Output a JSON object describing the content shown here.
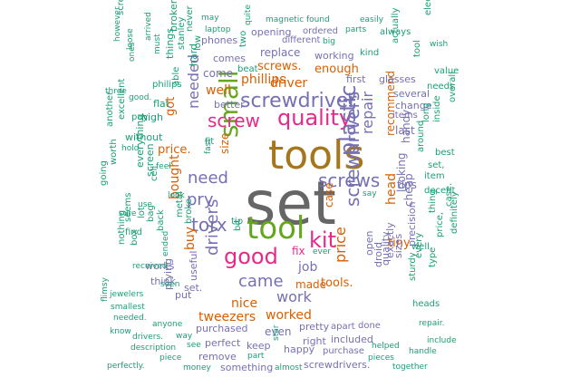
{
  "palette": {
    "teal": "#1b9e77",
    "orange": "#d95f02",
    "purple": "#7570b3",
    "magenta": "#e7298a",
    "green": "#66a61e",
    "olive": "#a6761d",
    "gray": "#666666",
    "gold": "#e6ab02"
  },
  "words": [
    {
      "text": "set",
      "color": "gray"
    },
    {
      "text": "tools",
      "color": "olive"
    },
    {
      "text": "tool",
      "color": "green"
    },
    {
      "text": "good",
      "color": "magenta"
    },
    {
      "text": "quality",
      "color": "magenta"
    },
    {
      "text": "screwdriver",
      "color": "purple"
    },
    {
      "text": "small",
      "color": "green"
    },
    {
      "text": "screw",
      "color": "magenta"
    },
    {
      "text": "kit",
      "color": "magenta"
    },
    {
      "text": "plastic",
      "color": "purple"
    },
    {
      "text": "screws",
      "color": "purple"
    },
    {
      "text": "screwdrivers",
      "color": "purple"
    },
    {
      "text": "need",
      "color": "purple"
    },
    {
      "text": "torx",
      "color": "purple"
    },
    {
      "text": "pry",
      "color": "purple"
    },
    {
      "text": "drivers",
      "color": "purple"
    },
    {
      "text": "came",
      "color": "purple"
    },
    {
      "text": "needed",
      "color": "purple"
    },
    {
      "text": "repair",
      "color": "purple"
    },
    {
      "text": "phillips",
      "color": "orange"
    },
    {
      "text": "driver",
      "color": "orange"
    },
    {
      "text": "buy",
      "color": "orange"
    },
    {
      "text": "job",
      "color": "purple"
    },
    {
      "text": "work",
      "color": "purple"
    },
    {
      "text": "price",
      "color": "orange"
    },
    {
      "text": "head",
      "color": "orange"
    },
    {
      "text": "bought",
      "color": "orange"
    },
    {
      "text": "well",
      "color": "orange"
    },
    {
      "text": "nice",
      "color": "orange"
    },
    {
      "text": "worked",
      "color": "orange"
    },
    {
      "text": "tweezers",
      "color": "orange"
    },
    {
      "text": "screws.",
      "color": "orange"
    },
    {
      "text": "enough",
      "color": "orange"
    },
    {
      "text": "price.",
      "color": "orange"
    },
    {
      "text": "tiny",
      "color": "orange"
    },
    {
      "text": "tools.",
      "color": "orange"
    },
    {
      "text": "made",
      "color": "orange"
    },
    {
      "text": "recommend",
      "color": "orange"
    },
    {
      "text": "case",
      "color": "orange"
    },
    {
      "text": "fix",
      "color": "magenta"
    },
    {
      "text": "got",
      "color": "orange"
    },
    {
      "text": "purchased",
      "color": "purple"
    },
    {
      "text": "replace",
      "color": "purple"
    },
    {
      "text": "last",
      "color": "purple"
    },
    {
      "text": "tips",
      "color": "purple"
    },
    {
      "text": "even",
      "color": "purple"
    },
    {
      "text": "looking",
      "color": "purple"
    },
    {
      "text": "cheap",
      "color": "purple"
    },
    {
      "text": "handy",
      "color": "purple"
    },
    {
      "text": "come",
      "color": "purple"
    },
    {
      "text": "better",
      "color": "purple"
    },
    {
      "text": "works",
      "color": "purple"
    },
    {
      "text": "think",
      "color": "purple"
    },
    {
      "text": "comes",
      "color": "purple"
    },
    {
      "text": "phones",
      "color": "purple"
    },
    {
      "text": "opening",
      "color": "purple"
    },
    {
      "text": "working",
      "color": "purple"
    },
    {
      "text": "different",
      "color": "purple"
    },
    {
      "text": "ordered",
      "color": "purple"
    },
    {
      "text": "first",
      "color": "purple"
    },
    {
      "text": "glasses",
      "color": "purple"
    },
    {
      "text": "several",
      "color": "purple"
    },
    {
      "text": "change",
      "color": "purple"
    },
    {
      "text": "items",
      "color": "purple"
    },
    {
      "text": "pretty",
      "color": "purple"
    },
    {
      "text": "right",
      "color": "purple"
    },
    {
      "text": "included",
      "color": "purple"
    },
    {
      "text": "happy",
      "color": "purple"
    },
    {
      "text": "perfect",
      "color": "purple"
    },
    {
      "text": "keep",
      "color": "purple"
    },
    {
      "text": "remove",
      "color": "purple"
    },
    {
      "text": "something",
      "color": "purple"
    },
    {
      "text": "screwdrivers.",
      "color": "purple"
    },
    {
      "text": "purchase",
      "color": "purple"
    },
    {
      "text": "apart",
      "color": "purple"
    },
    {
      "text": "done",
      "color": "purple"
    },
    {
      "text": "size",
      "color": "orange"
    },
    {
      "text": "sizes",
      "color": "purple"
    },
    {
      "text": "exactly",
      "color": "purple"
    },
    {
      "text": "precision",
      "color": "purple"
    },
    {
      "text": "quality",
      "color": "purple"
    },
    {
      "text": "open",
      "color": "purple"
    },
    {
      "text": "droid",
      "color": "purple"
    },
    {
      "text": "set.",
      "color": "purple"
    },
    {
      "text": "useful",
      "color": "purple"
    },
    {
      "text": "put",
      "color": "purple"
    },
    {
      "text": "prying",
      "color": "purple"
    },
    {
      "text": "screen",
      "color": "teal"
    },
    {
      "text": "everything",
      "color": "teal"
    },
    {
      "text": "without",
      "color": "teal"
    },
    {
      "text": "high",
      "color": "teal"
    },
    {
      "text": "flat",
      "color": "teal"
    },
    {
      "text": "things",
      "color": "teal"
    },
    {
      "text": "broken",
      "color": "teal"
    },
    {
      "text": "stanley",
      "color": "teal"
    },
    {
      "text": "never",
      "color": "teal"
    },
    {
      "text": "low",
      "color": "teal"
    },
    {
      "text": "hard",
      "color": "teal"
    },
    {
      "text": "beat",
      "color": "teal"
    },
    {
      "text": "two",
      "color": "teal"
    },
    {
      "text": "quite",
      "color": "teal"
    },
    {
      "text": "magnetic",
      "color": "teal"
    },
    {
      "text": "found",
      "color": "teal"
    },
    {
      "text": "easily",
      "color": "teal"
    },
    {
      "text": "parts",
      "color": "teal"
    },
    {
      "text": "always",
      "color": "teal"
    },
    {
      "text": "electronics",
      "color": "teal"
    },
    {
      "text": "wish",
      "color": "teal"
    },
    {
      "text": "big",
      "color": "teal"
    },
    {
      "text": "kind",
      "color": "teal"
    },
    {
      "text": "actually",
      "color": "teal"
    },
    {
      "text": "tool",
      "color": "teal"
    },
    {
      "text": "value",
      "color": "teal"
    },
    {
      "text": "needs",
      "color": "teal"
    },
    {
      "text": "best",
      "color": "teal"
    },
    {
      "text": "overall",
      "color": "teal"
    },
    {
      "text": "inside",
      "color": "teal"
    },
    {
      "text": "long",
      "color": "teal"
    },
    {
      "text": "set,",
      "color": "teal"
    },
    {
      "text": "item",
      "color": "teal"
    },
    {
      "text": "around",
      "color": "teal"
    },
    {
      "text": "decent",
      "color": "teal"
    },
    {
      "text": "thing",
      "color": "teal"
    },
    {
      "text": "case.",
      "color": "teal"
    },
    {
      "text": "price,",
      "color": "teal"
    },
    {
      "text": "definitely",
      "color": "teal"
    },
    {
      "text": "type",
      "color": "teal"
    },
    {
      "text": "every",
      "color": "teal"
    },
    {
      "text": "heads",
      "color": "teal"
    },
    {
      "text": "repair.",
      "color": "teal"
    },
    {
      "text": "include",
      "color": "teal"
    },
    {
      "text": "handle",
      "color": "teal"
    },
    {
      "text": "helped",
      "color": "teal"
    },
    {
      "text": "pieces",
      "color": "teal"
    },
    {
      "text": "together",
      "color": "teal"
    },
    {
      "text": "sturdy",
      "color": "teal"
    },
    {
      "text": "well",
      "color": "teal"
    },
    {
      "text": "say",
      "color": "teal"
    },
    {
      "text": "ever",
      "color": "teal"
    },
    {
      "text": "bit",
      "color": "teal"
    },
    {
      "text": "tip",
      "color": "teal"
    },
    {
      "text": "broke",
      "color": "teal"
    },
    {
      "text": "metal",
      "color": "teal"
    },
    {
      "text": "back",
      "color": "teal"
    },
    {
      "text": "bag",
      "color": "teal"
    },
    {
      "text": "nothing",
      "color": "teal"
    },
    {
      "text": "box",
      "color": "teal"
    },
    {
      "text": "flimsy",
      "color": "teal"
    },
    {
      "text": "know",
      "color": "teal"
    },
    {
      "text": "drivers.",
      "color": "teal"
    },
    {
      "text": "perfectly.",
      "color": "teal"
    },
    {
      "text": "needed.",
      "color": "teal"
    },
    {
      "text": "smallest",
      "color": "teal"
    },
    {
      "text": "jewelers",
      "color": "teal"
    },
    {
      "text": "received",
      "color": "teal"
    },
    {
      "text": "seems",
      "color": "teal"
    },
    {
      "text": "find",
      "color": "teal"
    },
    {
      "text": "going",
      "color": "teal"
    },
    {
      "text": "worth",
      "color": "teal"
    },
    {
      "text": "sure",
      "color": "teal"
    },
    {
      "text": "use",
      "color": "teal"
    },
    {
      "text": "another",
      "color": "teal"
    },
    {
      "text": "hold",
      "color": "teal"
    },
    {
      "text": "pay",
      "color": "teal"
    },
    {
      "text": "excellent",
      "color": "teal"
    },
    {
      "text": "three",
      "color": "teal"
    },
    {
      "text": "good.",
      "color": "teal"
    },
    {
      "text": "ones",
      "color": "teal"
    },
    {
      "text": "must",
      "color": "teal"
    },
    {
      "text": "arrived",
      "color": "teal"
    },
    {
      "text": "loose",
      "color": "teal"
    },
    {
      "text": "however",
      "color": "teal"
    },
    {
      "text": "screwdrivers,",
      "color": "teal"
    },
    {
      "text": "philips",
      "color": "teal"
    },
    {
      "text": "able",
      "color": "teal"
    },
    {
      "text": "may",
      "color": "teal"
    },
    {
      "text": "laptop",
      "color": "teal"
    },
    {
      "text": "fit",
      "color": "teal"
    },
    {
      "text": "fast",
      "color": "teal"
    },
    {
      "text": "cell",
      "color": "teal"
    },
    {
      "text": "feel",
      "color": "teal"
    },
    {
      "text": "look",
      "color": "teal"
    },
    {
      "text": "anyone",
      "color": "teal"
    },
    {
      "text": "way",
      "color": "teal"
    },
    {
      "text": "description",
      "color": "teal"
    },
    {
      "text": "piece",
      "color": "teal"
    },
    {
      "text": "money",
      "color": "teal"
    },
    {
      "text": "see",
      "color": "teal"
    },
    {
      "text": "part",
      "color": "teal"
    },
    {
      "text": "star",
      "color": "teal"
    },
    {
      "text": "almost",
      "color": "teal"
    },
    {
      "text": "ended",
      "color": "teal"
    },
    {
      "text": "seen",
      "color": "teal"
    },
    {
      "text": "lot",
      "color": "teal"
    }
  ]
}
